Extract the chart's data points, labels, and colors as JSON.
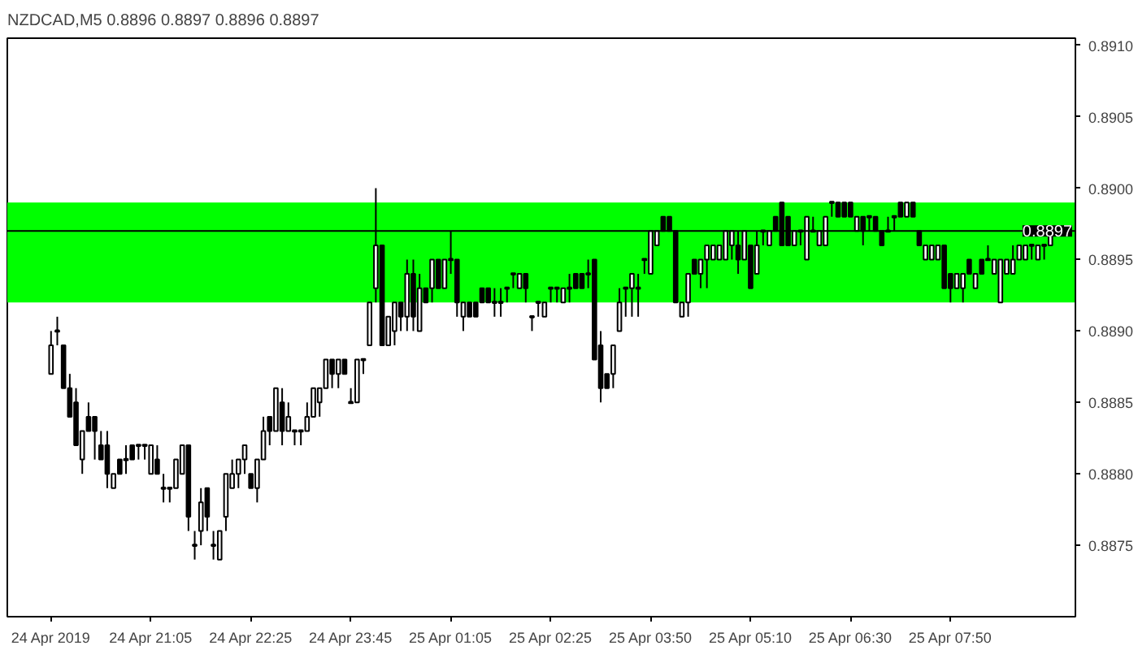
{
  "chart_data": {
    "type": "candlestick",
    "title": "NZDCAD,M5  0.8896 0.8897 0.8896 0.8897",
    "categories": [
      "24 Apr 2019",
      null,
      null,
      null,
      null,
      null,
      null,
      null,
      null,
      null,
      null,
      null,
      null,
      null,
      null,
      null,
      "24 Apr 21:05",
      null,
      null,
      null,
      null,
      null,
      null,
      null,
      null,
      null,
      null,
      null,
      null,
      null,
      null,
      null,
      "24 Apr 22:25",
      null,
      null,
      null,
      null,
      null,
      null,
      null,
      null,
      null,
      null,
      null,
      null,
      null,
      null,
      null,
      "24 Apr 23:45",
      null,
      null,
      null,
      null,
      null,
      null,
      null,
      null,
      null,
      null,
      null,
      null,
      null,
      null,
      null,
      "25 Apr 01:05",
      null,
      null,
      null,
      null,
      null,
      null,
      null,
      null,
      null,
      null,
      null,
      null,
      null,
      null,
      null,
      "25 Apr 02:25",
      null,
      null,
      null,
      null,
      null,
      null,
      null,
      null,
      null,
      null,
      null,
      null,
      null,
      null,
      null,
      "25 Apr 03:50",
      null,
      null,
      null,
      null,
      null,
      null,
      null,
      null,
      null,
      null,
      null,
      null,
      null,
      null,
      null,
      "25 Apr 05:10",
      null,
      null,
      null,
      null,
      null,
      null,
      null,
      null,
      null,
      null,
      null,
      null,
      null,
      null,
      null,
      "25 Apr 06:30",
      null,
      null,
      null,
      null,
      null,
      null,
      null,
      null,
      null,
      null,
      null,
      null,
      null,
      null,
      null,
      "25 Apr 07:50",
      null,
      null,
      null,
      null,
      null,
      null,
      null,
      null,
      null,
      null,
      null,
      null,
      null,
      null,
      null,
      null
    ],
    "ohlc": [
      [
        0.8887,
        0.889,
        0.8887,
        0.8889
      ],
      [
        0.889,
        0.8891,
        0.8889,
        0.889
      ],
      [
        0.8889,
        0.8889,
        0.8886,
        0.8886
      ],
      [
        0.8886,
        0.8887,
        0.8884,
        0.8884
      ],
      [
        0.8885,
        0.8886,
        0.8882,
        0.8882
      ],
      [
        0.8881,
        0.8883,
        0.888,
        0.8883
      ],
      [
        0.8884,
        0.8885,
        0.8883,
        0.8883
      ],
      [
        0.8884,
        0.8884,
        0.8881,
        0.8883
      ],
      [
        0.8882,
        0.8883,
        0.8881,
        0.8881
      ],
      [
        0.8882,
        0.8883,
        0.8879,
        0.888
      ],
      [
        0.8879,
        0.888,
        0.8879,
        0.888
      ],
      [
        0.8881,
        0.8881,
        0.888,
        0.888
      ],
      [
        0.8881,
        0.8882,
        0.888,
        0.8881
      ],
      [
        0.8882,
        0.8882,
        0.8881,
        0.8881
      ],
      [
        0.8882,
        0.8882,
        0.8881,
        0.8882
      ],
      [
        0.8882,
        0.8882,
        0.8881,
        0.8882
      ],
      [
        0.888,
        0.8882,
        0.888,
        0.8882
      ],
      [
        0.8881,
        0.8882,
        0.888,
        0.888
      ],
      [
        0.8879,
        0.888,
        0.8878,
        0.8879
      ],
      [
        0.8879,
        0.8879,
        0.8878,
        0.8879
      ],
      [
        0.8879,
        0.8881,
        0.8879,
        0.8881
      ],
      [
        0.888,
        0.8882,
        0.888,
        0.8882
      ],
      [
        0.8882,
        0.8882,
        0.8876,
        0.8877
      ],
      [
        0.8875,
        0.8876,
        0.8874,
        0.8875
      ],
      [
        0.8876,
        0.8879,
        0.8875,
        0.8878
      ],
      [
        0.8879,
        0.8879,
        0.8876,
        0.8877
      ],
      [
        0.8875,
        0.8876,
        0.8874,
        0.8875
      ],
      [
        0.8874,
        0.8876,
        0.8874,
        0.8876
      ],
      [
        0.8877,
        0.888,
        0.8876,
        0.888
      ],
      [
        0.8879,
        0.8881,
        0.8879,
        0.888
      ],
      [
        0.888,
        0.8881,
        0.8879,
        0.8881
      ],
      [
        0.8881,
        0.8882,
        0.888,
        0.8882
      ],
      [
        0.888,
        0.888,
        0.8879,
        0.8879
      ],
      [
        0.8879,
        0.8881,
        0.8878,
        0.8881
      ],
      [
        0.8881,
        0.8884,
        0.8881,
        0.8883
      ],
      [
        0.8884,
        0.8884,
        0.8882,
        0.8883
      ],
      [
        0.8883,
        0.8886,
        0.8883,
        0.8886
      ],
      [
        0.8885,
        0.8886,
        0.8882,
        0.8883
      ],
      [
        0.8883,
        0.8885,
        0.8883,
        0.8884
      ],
      [
        0.8883,
        0.8883,
        0.8882,
        0.8883
      ],
      [
        0.8883,
        0.8883,
        0.8882,
        0.8883
      ],
      [
        0.8883,
        0.8885,
        0.8883,
        0.8884
      ],
      [
        0.8884,
        0.8886,
        0.8884,
        0.8886
      ],
      [
        0.8885,
        0.8886,
        0.8884,
        0.8886
      ],
      [
        0.8886,
        0.8888,
        0.8886,
        0.8888
      ],
      [
        0.8888,
        0.8888,
        0.8886,
        0.8887
      ],
      [
        0.8887,
        0.8888,
        0.8886,
        0.8888
      ],
      [
        0.8888,
        0.8888,
        0.8887,
        0.8887
      ],
      [
        0.8885,
        0.8886,
        0.8885,
        0.8885
      ],
      [
        0.8885,
        0.8888,
        0.8885,
        0.8888
      ],
      [
        0.8888,
        0.8888,
        0.8887,
        0.8888
      ],
      [
        0.8889,
        0.8892,
        0.8889,
        0.8892
      ],
      [
        0.8893,
        0.89,
        0.8892,
        0.8896
      ],
      [
        0.8896,
        0.8896,
        0.8889,
        0.8889
      ],
      [
        0.8889,
        0.8891,
        0.8889,
        0.8891
      ],
      [
        0.889,
        0.8892,
        0.8889,
        0.8892
      ],
      [
        0.8892,
        0.8892,
        0.889,
        0.8891
      ],
      [
        0.8891,
        0.8895,
        0.889,
        0.8894
      ],
      [
        0.8894,
        0.8895,
        0.889,
        0.8891
      ],
      [
        0.889,
        0.8894,
        0.889,
        0.8893
      ],
      [
        0.8893,
        0.8893,
        0.8892,
        0.8892
      ],
      [
        0.8893,
        0.8895,
        0.8892,
        0.8895
      ],
      [
        0.8895,
        0.8895,
        0.8893,
        0.8893
      ],
      [
        0.8893,
        0.8895,
        0.8893,
        0.8895
      ],
      [
        0.8895,
        0.8897,
        0.8894,
        0.8895
      ],
      [
        0.8895,
        0.8895,
        0.8891,
        0.8892
      ],
      [
        0.8891,
        0.8892,
        0.889,
        0.8892
      ],
      [
        0.8892,
        0.8892,
        0.8891,
        0.8891
      ],
      [
        0.8892,
        0.8892,
        0.8891,
        0.8891
      ],
      [
        0.8893,
        0.8893,
        0.8892,
        0.8892
      ],
      [
        0.8893,
        0.8893,
        0.8892,
        0.8892
      ],
      [
        0.8892,
        0.8893,
        0.8891,
        0.8892
      ],
      [
        0.8892,
        0.8893,
        0.8891,
        0.8892
      ],
      [
        0.8893,
        0.8893,
        0.8892,
        0.8893
      ],
      [
        0.8894,
        0.8894,
        0.8893,
        0.8894
      ],
      [
        0.8893,
        0.8894,
        0.8893,
        0.8894
      ],
      [
        0.8894,
        0.8894,
        0.8892,
        0.8893
      ],
      [
        0.8891,
        0.8891,
        0.889,
        0.8891
      ],
      [
        0.8892,
        0.8892,
        0.8891,
        0.8892
      ],
      [
        0.8891,
        0.8892,
        0.8891,
        0.8892
      ],
      [
        0.8893,
        0.8893,
        0.8892,
        0.8893
      ],
      [
        0.8893,
        0.8893,
        0.8892,
        0.8893
      ],
      [
        0.8892,
        0.8893,
        0.8892,
        0.8893
      ],
      [
        0.8893,
        0.8894,
        0.8892,
        0.8893
      ],
      [
        0.8894,
        0.8894,
        0.8893,
        0.8893
      ],
      [
        0.8894,
        0.8894,
        0.8893,
        0.8893
      ],
      [
        0.8894,
        0.8895,
        0.8893,
        0.8894
      ],
      [
        0.8895,
        0.8895,
        0.8888,
        0.8888
      ],
      [
        0.8889,
        0.889,
        0.8885,
        0.8886
      ],
      [
        0.8887,
        0.8887,
        0.8886,
        0.8886
      ],
      [
        0.8887,
        0.8889,
        0.8886,
        0.8889
      ],
      [
        0.889,
        0.8893,
        0.889,
        0.8892
      ],
      [
        0.8893,
        0.8893,
        0.8891,
        0.8893
      ],
      [
        0.8893,
        0.8894,
        0.8891,
        0.8894
      ],
      [
        0.8893,
        0.8894,
        0.8891,
        0.8893
      ],
      [
        0.8895,
        0.8895,
        0.8894,
        0.8895
      ],
      [
        0.8894,
        0.8897,
        0.8894,
        0.8897
      ],
      [
        0.8896,
        0.8897,
        0.8896,
        0.8897
      ],
      [
        0.8898,
        0.8898,
        0.8897,
        0.8897
      ],
      [
        0.8898,
        0.8898,
        0.8897,
        0.8897
      ],
      [
        0.8897,
        0.8897,
        0.8892,
        0.8892
      ],
      [
        0.8891,
        0.8892,
        0.8891,
        0.8892
      ],
      [
        0.8892,
        0.8894,
        0.8891,
        0.8894
      ],
      [
        0.8895,
        0.8895,
        0.8894,
        0.8894
      ],
      [
        0.8894,
        0.8895,
        0.8893,
        0.8895
      ],
      [
        0.8895,
        0.8896,
        0.8893,
        0.8896
      ],
      [
        0.8895,
        0.8896,
        0.8895,
        0.8896
      ],
      [
        0.8895,
        0.8896,
        0.8895,
        0.8896
      ],
      [
        0.8895,
        0.8897,
        0.8895,
        0.8897
      ],
      [
        0.8896,
        0.8897,
        0.8895,
        0.8897
      ],
      [
        0.8896,
        0.8897,
        0.8894,
        0.8895
      ],
      [
        0.8895,
        0.8897,
        0.8895,
        0.8897
      ],
      [
        0.8896,
        0.8896,
        0.8893,
        0.8893
      ],
      [
        0.8894,
        0.8897,
        0.8894,
        0.8896
      ],
      [
        0.8897,
        0.8897,
        0.8896,
        0.8897
      ],
      [
        0.8896,
        0.8897,
        0.8896,
        0.8897
      ],
      [
        0.8898,
        0.8898,
        0.8897,
        0.8897
      ],
      [
        0.8899,
        0.8899,
        0.8896,
        0.8896
      ],
      [
        0.8898,
        0.8898,
        0.8896,
        0.8896
      ],
      [
        0.8896,
        0.8897,
        0.8896,
        0.8897
      ],
      [
        0.8897,
        0.8897,
        0.8896,
        0.8897
      ],
      [
        0.8895,
        0.8898,
        0.8895,
        0.8898
      ],
      [
        0.8897,
        0.8898,
        0.8897,
        0.8897
      ],
      [
        0.8896,
        0.8897,
        0.8896,
        0.8897
      ],
      [
        0.8896,
        0.8898,
        0.8896,
        0.8898
      ],
      [
        0.8899,
        0.8899,
        0.8898,
        0.8899
      ],
      [
        0.8899,
        0.8899,
        0.8898,
        0.8898
      ],
      [
        0.8899,
        0.8899,
        0.8898,
        0.8898
      ],
      [
        0.8899,
        0.8899,
        0.8898,
        0.8898
      ],
      [
        0.8897,
        0.8898,
        0.8897,
        0.8898
      ],
      [
        0.8898,
        0.8898,
        0.8896,
        0.8897
      ],
      [
        0.8898,
        0.8898,
        0.8897,
        0.8898
      ],
      [
        0.8898,
        0.8898,
        0.8897,
        0.8897
      ],
      [
        0.8897,
        0.8897,
        0.8896,
        0.8896
      ],
      [
        0.8897,
        0.8898,
        0.8897,
        0.8897
      ],
      [
        0.8898,
        0.8898,
        0.8897,
        0.8898
      ],
      [
        0.8899,
        0.8899,
        0.8898,
        0.8898
      ],
      [
        0.8898,
        0.8899,
        0.8898,
        0.8899
      ],
      [
        0.8899,
        0.8899,
        0.8898,
        0.8898
      ],
      [
        0.8897,
        0.8897,
        0.8896,
        0.8896
      ],
      [
        0.8895,
        0.8896,
        0.8895,
        0.8896
      ],
      [
        0.8895,
        0.8896,
        0.8895,
        0.8896
      ],
      [
        0.8895,
        0.8896,
        0.8895,
        0.8896
      ],
      [
        0.8896,
        0.8896,
        0.8893,
        0.8893
      ],
      [
        0.8894,
        0.8894,
        0.8892,
        0.8893
      ],
      [
        0.8893,
        0.8894,
        0.8893,
        0.8894
      ],
      [
        0.8893,
        0.8894,
        0.8892,
        0.8894
      ],
      [
        0.8895,
        0.8895,
        0.8894,
        0.8894
      ],
      [
        0.8893,
        0.8894,
        0.8893,
        0.8894
      ],
      [
        0.8895,
        0.8895,
        0.8894,
        0.8894
      ],
      [
        0.8895,
        0.8896,
        0.8895,
        0.8895
      ],
      [
        0.8894,
        0.8895,
        0.8894,
        0.8895
      ],
      [
        0.8892,
        0.8895,
        0.8892,
        0.8895
      ],
      [
        0.8894,
        0.8895,
        0.8894,
        0.8895
      ],
      [
        0.8894,
        0.8896,
        0.8894,
        0.8895
      ],
      [
        0.8895,
        0.8896,
        0.8895,
        0.8896
      ],
      [
        0.8895,
        0.8896,
        0.8895,
        0.8896
      ],
      [
        0.8896,
        0.8896,
        0.8895,
        0.8896
      ],
      [
        0.8895,
        0.8896,
        0.8895,
        0.8896
      ],
      [
        0.8896,
        0.8896,
        0.8895,
        0.8896
      ],
      [
        0.8896,
        0.8897,
        0.8896,
        0.8897
      ]
    ],
    "ylim": [
      0.887,
      0.89105
    ],
    "yticks": [
      0.8875,
      {
        "value": 0.8885,
        "label": "0.8885"
      },
      {
        "value": 0.888,
        "label": "0.8880"
      },
      {
        "value": 0.889,
        "label": "0.8890"
      },
      0.8895,
      {
        "value": 0.89,
        "label": "0.8900"
      },
      0.8905,
      {
        "value": 0.891,
        "label": "0.8910"
      }
    ],
    "ref_lines": [
      {
        "axis": "y",
        "value": 0.8897,
        "label": "0.8897",
        "color": "#000000"
      }
    ],
    "bands": [
      {
        "axis": "y",
        "from": 0.8892,
        "to": 0.8899,
        "color": "#00ff00"
      }
    ],
    "grid": false
  }
}
